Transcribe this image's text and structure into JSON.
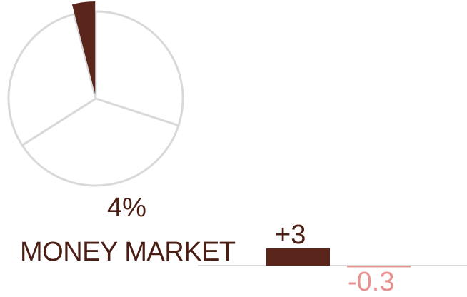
{
  "chart_data": [
    {
      "type": "pie",
      "highlight_label": "4%",
      "slices": [
        {
          "value": 30,
          "color": "#ffffff"
        },
        {
          "value": 36,
          "color": "#ffffff"
        },
        {
          "value": 30,
          "color": "#ffffff"
        },
        {
          "value": 4,
          "color": "#5a261b"
        }
      ],
      "outline_color": "#d9d9d9"
    },
    {
      "type": "bar",
      "category": "MONEY MARKET",
      "series": [
        {
          "value": 3,
          "label": "+3",
          "color": "#5a261b"
        },
        {
          "value": -0.3,
          "label": "-0.3",
          "color": "#e8928f"
        }
      ],
      "axis_color": "#d9d9d9"
    }
  ]
}
